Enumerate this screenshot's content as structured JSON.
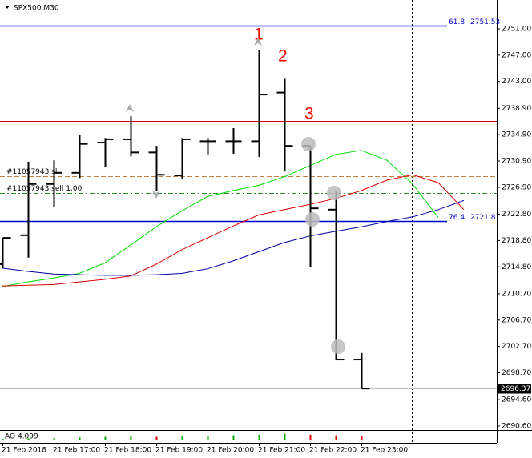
{
  "chart_data": {
    "type": "ohlc",
    "title": "SPX500,M30",
    "color": "#000000",
    "categories": [
      "21 Feb 2018",
      null,
      "21 Feb 17:00",
      null,
      "21 Feb 18:00",
      null,
      "21 Feb 19:00",
      null,
      "21 Feb 20:00",
      null,
      "21 Feb 21:00",
      null,
      "21 Feb 22:00",
      null,
      "21 Feb 23:00",
      null,
      null,
      null,
      null
    ],
    "open": [
      2715.2,
      2719.6,
      2727.4,
      2729.1,
      2733.7,
      2734.2,
      2732.2,
      2728.7,
      2733.9,
      2733.9,
      2733.9,
      2741.3,
      2733.2,
      2723.5,
      2700.7,
      null,
      null,
      null,
      null
    ],
    "high": [
      2719.2,
      2730.8,
      2731.0,
      2734.9,
      2734.4,
      2737.7,
      2733.2,
      2734.4,
      2734.4,
      2735.9,
      2747.8,
      2743.4,
      2733.2,
      2726.4,
      2701.7,
      null,
      null,
      null,
      null
    ],
    "low": [
      2714.6,
      2716.2,
      2723.9,
      2728.3,
      2730.0,
      2731.6,
      2726.4,
      2728.1,
      2731.9,
      2732.0,
      2731.5,
      2729.3,
      2714.7,
      2700.7,
      2696.3,
      null,
      null,
      null,
      null
    ],
    "close": [
      2719.2,
      2727.4,
      2729.1,
      2733.5,
      2734.2,
      2732.2,
      2728.8,
      2734.2,
      2733.9,
      2733.9,
      2741.0,
      2733.2,
      2723.7,
      2700.7,
      2696.3,
      null,
      null,
      null,
      null
    ],
    "ylim": [
      2689.99,
      2755.38
    ],
    "yticks": [
      {
        "value": 2751.0,
        "label": "2751.00"
      },
      {
        "value": 2747.0,
        "label": "2747.00"
      },
      {
        "value": 2743.0,
        "label": "2743.00"
      },
      {
        "value": 2738.9,
        "label": "2738.90"
      },
      {
        "value": 2734.9,
        "label": "2734.90"
      },
      {
        "value": 2730.9,
        "label": "2730.90"
      },
      {
        "value": 2726.9,
        "label": "2726.90"
      },
      {
        "value": 2722.8,
        "label": "2722.80"
      },
      {
        "value": 2718.8,
        "label": "2718.80"
      },
      {
        "value": 2714.8,
        "label": "2714.80"
      },
      {
        "value": 2710.7,
        "label": "2710.70"
      },
      {
        "value": 2706.7,
        "label": "2706.70"
      },
      {
        "value": 2702.7,
        "label": "2702.70"
      },
      {
        "value": 2698.7,
        "label": "2698.70"
      },
      {
        "value": 2694.6,
        "label": "2694.60"
      },
      {
        "value": 2690.6,
        "label": "2690.60"
      }
    ],
    "moving_averages": [
      {
        "color": "#00dd00",
        "values": [
          2711.8,
          2712.5,
          2713.1,
          2713.8,
          2715.4,
          2718.1,
          2720.9,
          2723.3,
          2725.5,
          2726.4,
          2727.2,
          2728.5,
          2730.2,
          2731.9,
          2732.5,
          2731.0,
          2727.4,
          2722.3,
          null
        ]
      },
      {
        "color": "#dd0000",
        "values": [
          2711.9,
          2712.0,
          2712.1,
          2712.5,
          2712.9,
          2713.4,
          2715.2,
          2717.4,
          2719.2,
          2721.0,
          2722.7,
          2723.5,
          2724.3,
          2725.2,
          2726.4,
          2728.0,
          2728.8,
          2727.6,
          2723.5
        ]
      },
      {
        "color": "#0000aa",
        "values": [
          2714.6,
          2714.1,
          2713.7,
          2713.6,
          2713.5,
          2713.5,
          2713.6,
          2713.8,
          2714.5,
          2715.7,
          2717.1,
          2718.5,
          2719.5,
          2720.2,
          2720.9,
          2721.7,
          2722.4,
          2723.5,
          2724.9
        ]
      }
    ],
    "fib_lines": [
      {
        "level": "61.8",
        "value": 2751.53,
        "color": "#0000cd"
      },
      {
        "level": "76.4",
        "value": 2721.81,
        "color": "#0000cd"
      }
    ],
    "hline": {
      "value": 2736.98,
      "color": "#dd0000"
    },
    "order_lines": [
      {
        "label": "#11057943 sl",
        "value": 2728.6,
        "color": "#c08040",
        "dash": "6 3"
      },
      {
        "label": "#11057943 sell 1.00",
        "value": 2726.0,
        "color": "#2e8b2e",
        "dash": "6 3 2 3"
      }
    ],
    "current_price": 2696.37,
    "annotations": [
      "1",
      "2",
      "3"
    ],
    "indicator": {
      "label": "AO 4.099",
      "ylim": [
        -2,
        8
      ],
      "values": [
        1.0,
        1.5,
        2.0,
        2.5,
        3.0,
        3.5,
        3.0,
        3.5,
        4.0,
        4.5,
        5.0,
        6.0,
        5.0,
        4.5,
        4.099
      ],
      "colors": [
        "#00aa00",
        "#00aa00",
        "#00aa00",
        "#00aa00",
        "#00aa00",
        "#00aa00",
        "#dd0000",
        "#00aa00",
        "#00aa00",
        "#00aa00",
        "#00aa00",
        "#00aa00",
        "#dd0000",
        "#dd0000",
        "#dd0000"
      ]
    }
  }
}
